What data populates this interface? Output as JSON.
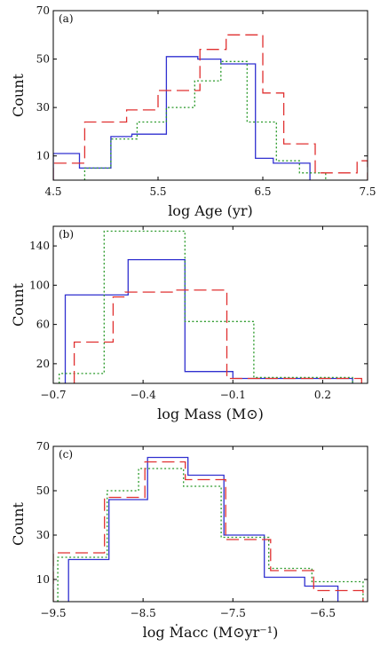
{
  "chart_data": [
    {
      "type": "step-histogram",
      "panel_label": "(a)",
      "xlabel": "log Age (yr)",
      "ylabel": "Count",
      "xlim": [
        4.5,
        7.5
      ],
      "ylim": [
        0,
        70
      ],
      "xticks": [
        4.5,
        5.5,
        6.5,
        7.5
      ],
      "xtick_labels": [
        "4.5",
        "5.5",
        "6.5",
        "7.5"
      ],
      "yticks": [
        10,
        30,
        50,
        70
      ],
      "ytick_labels": [
        "10",
        "30",
        "50",
        "70"
      ],
      "series": [
        {
          "style": "solid",
          "color": "#3030d0",
          "edges": [
            4.5,
            4.75,
            5.05,
            5.25,
            5.58,
            5.88,
            6.1,
            6.43,
            6.6,
            6.95
          ],
          "values": [
            11,
            5,
            18,
            19,
            51,
            50,
            48,
            9,
            7
          ]
        },
        {
          "style": "dotted",
          "color": "#2a9a2a",
          "edges": [
            4.8,
            5.05,
            5.3,
            5.58,
            5.85,
            6.1,
            6.35,
            6.63,
            6.85,
            7.1
          ],
          "values": [
            5,
            17,
            24,
            30,
            41,
            49,
            24,
            8,
            3
          ]
        },
        {
          "style": "dashed",
          "color": "#e03030",
          "edges": [
            4.5,
            4.8,
            5.2,
            5.5,
            5.9,
            6.15,
            6.5,
            6.7,
            7.0,
            7.4,
            7.5
          ],
          "values": [
            7,
            24,
            29,
            37,
            54,
            60,
            36,
            15,
            3,
            8
          ]
        }
      ]
    },
    {
      "type": "step-histogram",
      "panel_label": "(b)",
      "xlabel": "log Mass (M⊙)",
      "ylabel": "Count",
      "xlim": [
        -0.7,
        0.35
      ],
      "ylim": [
        0,
        160
      ],
      "xticks": [
        -0.7,
        -0.4,
        -0.1,
        0.2
      ],
      "xtick_labels": [
        "−0.7",
        "−0.4",
        "−0.1",
        "0.2"
      ],
      "yticks": [
        20,
        60,
        100,
        140
      ],
      "ytick_labels": [
        "20",
        "60",
        "100",
        "140"
      ],
      "series": [
        {
          "style": "solid",
          "color": "#3030d0",
          "edges": [
            -0.66,
            -0.45,
            -0.26,
            -0.1,
            0.3
          ],
          "values": [
            90,
            126,
            12,
            5
          ]
        },
        {
          "style": "dotted",
          "color": "#2a9a2a",
          "edges": [
            -0.68,
            -0.53,
            -0.26,
            -0.03,
            0.3
          ],
          "values": [
            10,
            155,
            63,
            6
          ]
        },
        {
          "style": "dashed",
          "color": "#e03030",
          "edges": [
            -0.63,
            -0.5,
            -0.46,
            -0.29,
            -0.12,
            0.33
          ],
          "values": [
            42,
            88,
            93,
            95,
            5
          ]
        }
      ]
    },
    {
      "type": "step-histogram",
      "panel_label": "(c)",
      "xlabel": "log Ṁacc (M⊙yr⁻¹)",
      "ylabel": "Count",
      "xlim": [
        -9.5,
        -6.0
      ],
      "ylim": [
        0,
        70
      ],
      "xticks": [
        -9.5,
        -8.5,
        -7.5,
        -6.5
      ],
      "xtick_labels": [
        "−9.5",
        "−8.5",
        "−7.5",
        "−6.5"
      ],
      "yticks": [
        10,
        30,
        50,
        70
      ],
      "ytick_labels": [
        "10",
        "30",
        "50",
        "70"
      ],
      "series": [
        {
          "style": "solid",
          "color": "#3030d0",
          "edges": [
            -9.33,
            -8.88,
            -8.45,
            -8.0,
            -7.6,
            -7.15,
            -6.7,
            -6.33
          ],
          "values": [
            19,
            46,
            65,
            57,
            30,
            11,
            7
          ]
        },
        {
          "style": "dotted",
          "color": "#2a9a2a",
          "edges": [
            -9.45,
            -8.9,
            -8.55,
            -8.05,
            -7.63,
            -7.1,
            -6.62,
            -6.05
          ],
          "values": [
            20,
            50,
            60,
            52,
            29,
            15,
            9
          ]
        },
        {
          "style": "dashed",
          "color": "#e03030",
          "edges": [
            -9.5,
            -8.93,
            -8.48,
            -8.03,
            -7.58,
            -7.08,
            -6.6,
            -6.05
          ],
          "values": [
            22,
            47,
            63,
            55,
            28,
            14,
            5
          ]
        }
      ]
    }
  ]
}
